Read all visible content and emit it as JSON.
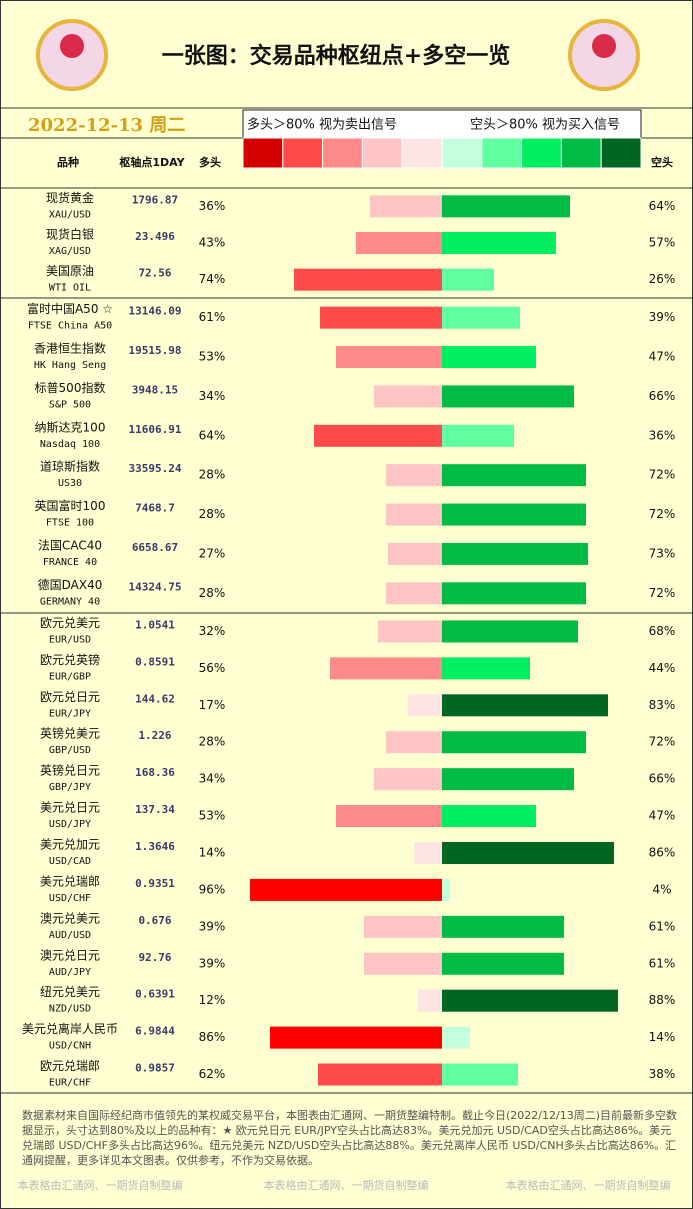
{
  "title": "一张图：交易品种枢纽点+多空一览",
  "date": "2022-12-13 周二",
  "legend": {
    "long_text": "多头＞80% 视为卖出信号",
    "short_text": "空头＞80% 视为买入信号",
    "colors": [
      "#d40000",
      "#ff4a4a",
      "#ff8a8a",
      "#ffc4c4",
      "#ffe4e4",
      "#c4ffdc",
      "#60ffa0",
      "#00ee60",
      "#00bb44",
      "#006622"
    ]
  },
  "headers": {
    "name": "品种",
    "pivot": "枢轴点1DAY"
  },
  "chart_data": {
    "type": "diverging_bar",
    "categories": [
      "现货黄金",
      "现货白银",
      "美国原油",
      "富时中国A50 ☆",
      "香港恒生指数",
      "标普500指数",
      "纳斯达克100",
      "道琼斯指数",
      "英国富时100",
      "法国CAC40",
      "德国DAX40",
      "欧元兑美元",
      "欧元兑英镑",
      "欧元兑日元",
      "英镑兑美元",
      "英镑兑日元",
      "美元兑日元",
      "美元兑加元",
      "美元兑瑞郎",
      "澳元兑美元",
      "澳元兑日元",
      "纽元兑美元",
      "美元兑离岸人民币",
      "欧元兑瑞郎"
    ],
    "codes": [
      "XAU/USD",
      "XAG/USD",
      "WTI OIL",
      "FTSE China A50",
      "HK Hang Seng",
      "S&P 500",
      "Nasdaq 100",
      "US30",
      "FTSE 100",
      "FRANCE 40",
      "GERMANY 40",
      "EUR/USD",
      "EUR/GBP",
      "EUR/JPY",
      "GBP/USD",
      "GBP/JPY",
      "USD/JPY",
      "USD/CAD",
      "USD/CHF",
      "AUD/USD",
      "AUD/JPY",
      "NZD/USD",
      "USD/CNH",
      "EUR/CHF"
    ],
    "pivots": [
      1796.87,
      23.496,
      72.56,
      13146.09,
      19515.98,
      3948.15,
      11606.91,
      33595.24,
      7468.7,
      6658.67,
      14324.75,
      1.0541,
      0.8591,
      144.62,
      1.226,
      168.36,
      137.34,
      1.3646,
      0.9351,
      0.676,
      92.76,
      0.6391,
      6.9844,
      0.9857
    ],
    "series": [
      {
        "name": "多头",
        "values": [
          36,
          43,
          74,
          61,
          53,
          34,
          64,
          28,
          28,
          27,
          28,
          32,
          56,
          17,
          28,
          34,
          53,
          14,
          96,
          39,
          39,
          12,
          86,
          62
        ],
        "value_labels": [
          "36%",
          "43%",
          "74%",
          "61%",
          "53%",
          "34%",
          "64%",
          "28%",
          "28%",
          "27%",
          "28%",
          "32%",
          "56%",
          "17%",
          "28%",
          "34%",
          "53%",
          "14%",
          "96%",
          "39%",
          "39%",
          "12%",
          "86%",
          "62%"
        ],
        "colors": [
          "#ffc4c4",
          "#ff8a8a",
          "#ff4a4a",
          "#ff4a4a",
          "#ff8a8a",
          "#ffc4c4",
          "#ff4a4a",
          "#ffc4c4",
          "#ffc4c4",
          "#ffc4c4",
          "#ffc4c4",
          "#ffc4c4",
          "#ff8a8a",
          "#ffe4e4",
          "#ffc4c4",
          "#ffc4c4",
          "#ff8a8a",
          "#ffe4e4",
          "#ff0000",
          "#ffc4c4",
          "#ffc4c4",
          "#ffe4e4",
          "#ff0000",
          "#ff4a4a"
        ]
      },
      {
        "name": "空头",
        "values": [
          64,
          57,
          26,
          39,
          47,
          66,
          36,
          72,
          72,
          73,
          72,
          68,
          44,
          83,
          72,
          66,
          47,
          86,
          4,
          61,
          61,
          88,
          14,
          38
        ],
        "value_labels": [
          "64%",
          "57%",
          "26%",
          "39%",
          "47%",
          "66%",
          "36%",
          "72%",
          "72%",
          "73%",
          "72%",
          "68%",
          "44%",
          "83%",
          "72%",
          "66%",
          "47%",
          "86%",
          "4%",
          "61%",
          "61%",
          "88%",
          "14%",
          "38%"
        ],
        "colors": [
          "#00bb44",
          "#00ee60",
          "#60ffa0",
          "#60ffa0",
          "#00ee60",
          "#00bb44",
          "#60ffa0",
          "#00bb44",
          "#00bb44",
          "#00bb44",
          "#00bb44",
          "#00bb44",
          "#00ee60",
          "#006622",
          "#00bb44",
          "#00bb44",
          "#00ee60",
          "#006622",
          "#c4ffdc",
          "#00bb44",
          "#00bb44",
          "#006622",
          "#c4ffdc",
          "#60ffa0"
        ]
      }
    ]
  },
  "footer": {
    "text": "数据素材来自国际经纪商市值领先的某权威交易平台，本图表由汇通网、一期货整编特制。截止今日(2022/12/13周二)目前最新多空数据显示，头寸达到80%及以上的品种有：★ 欧元兑日元 EUR/JPY空头占比高达83%。美元兑加元 USD/CAD空头占比高达86%。美元兑瑞郎 USD/CHF多头占比高达96%。纽元兑美元 NZD/USD空头占比高达88%。美元兑离岸人民币 USD/CNH多头占比高达86%。汇通网提醒，更多详见本文图表。仅供参考，不作为交易依据。",
    "watermark": "本表格由汇通网、一期货自制整编"
  }
}
